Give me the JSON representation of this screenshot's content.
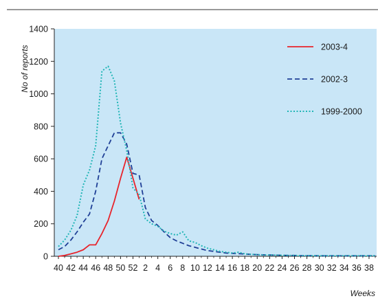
{
  "chart_data": {
    "type": "line",
    "title": "",
    "ylabel": "No of reports",
    "xlabel": "Weeks",
    "ylim": [
      0,
      1400
    ],
    "yticks": [
      0,
      200,
      400,
      600,
      800,
      1000,
      1200,
      1400
    ],
    "x_tick_labels": [
      "40",
      "42",
      "44",
      "46",
      "48",
      "50",
      "52",
      "2",
      "4",
      "6",
      "8",
      "10",
      "12",
      "14",
      "16",
      "18",
      "20",
      "22",
      "24",
      "26",
      "28",
      "30",
      "32",
      "34",
      "36",
      "38"
    ],
    "legend_position": "top-right",
    "plot_background": "#c9e6f7",
    "series": [
      {
        "name": "2003-4",
        "color": "#e8232a",
        "dash": "solid",
        "values": [
          [
            0,
            0
          ],
          [
            1,
            5
          ],
          [
            2,
            15
          ],
          [
            3,
            25
          ],
          [
            4,
            40
          ],
          [
            5,
            70
          ],
          [
            6,
            70
          ],
          [
            7,
            140
          ],
          [
            8,
            220
          ],
          [
            9,
            340
          ],
          [
            10,
            480
          ],
          [
            11,
            610
          ],
          [
            12,
            480
          ],
          [
            13,
            350
          ]
        ]
      },
      {
        "name": "2002-3",
        "color": "#1f3f96",
        "dash": "dashed",
        "values": [
          [
            0,
            40
          ],
          [
            1,
            60
          ],
          [
            2,
            100
          ],
          [
            3,
            150
          ],
          [
            4,
            210
          ],
          [
            5,
            260
          ],
          [
            6,
            400
          ],
          [
            7,
            600
          ],
          [
            8,
            680
          ],
          [
            9,
            760
          ],
          [
            10,
            760
          ],
          [
            11,
            690
          ],
          [
            12,
            510
          ],
          [
            13,
            500
          ],
          [
            14,
            300
          ],
          [
            15,
            220
          ],
          [
            16,
            190
          ],
          [
            17,
            150
          ],
          [
            18,
            115
          ],
          [
            19,
            95
          ],
          [
            20,
            80
          ],
          [
            21,
            65
          ],
          [
            22,
            55
          ],
          [
            23,
            45
          ],
          [
            24,
            35
          ],
          [
            25,
            30
          ],
          [
            26,
            25
          ],
          [
            27,
            20
          ],
          [
            28,
            18
          ],
          [
            29,
            16
          ],
          [
            30,
            14
          ],
          [
            31,
            12
          ],
          [
            32,
            10
          ],
          [
            33,
            9
          ],
          [
            34,
            8
          ],
          [
            35,
            7
          ],
          [
            36,
            6
          ],
          [
            37,
            5
          ],
          [
            38,
            5
          ],
          [
            39,
            4
          ],
          [
            40,
            4
          ],
          [
            41,
            4
          ],
          [
            42,
            3
          ],
          [
            43,
            3
          ],
          [
            44,
            3
          ],
          [
            45,
            3
          ],
          [
            46,
            3
          ],
          [
            47,
            3
          ],
          [
            48,
            3
          ],
          [
            49,
            3
          ],
          [
            50,
            3
          ],
          [
            51,
            3
          ]
        ]
      },
      {
        "name": "1999-2000",
        "color": "#1fb5b5",
        "dash": "dotted",
        "values": [
          [
            0,
            60
          ],
          [
            1,
            100
          ],
          [
            2,
            160
          ],
          [
            3,
            250
          ],
          [
            4,
            440
          ],
          [
            5,
            530
          ],
          [
            6,
            680
          ],
          [
            7,
            1140
          ],
          [
            8,
            1170
          ],
          [
            9,
            1080
          ],
          [
            10,
            820
          ],
          [
            11,
            650
          ],
          [
            12,
            420
          ],
          [
            13,
            380
          ],
          [
            14,
            230
          ],
          [
            15,
            200
          ],
          [
            16,
            185
          ],
          [
            17,
            155
          ],
          [
            18,
            140
          ],
          [
            19,
            130
          ],
          [
            20,
            150
          ],
          [
            21,
            95
          ],
          [
            22,
            85
          ],
          [
            23,
            65
          ],
          [
            24,
            50
          ],
          [
            25,
            40
          ],
          [
            26,
            30
          ],
          [
            27,
            25
          ],
          [
            28,
            20
          ],
          [
            29,
            25
          ],
          [
            30,
            15
          ],
          [
            31,
            12
          ],
          [
            32,
            10
          ],
          [
            33,
            8
          ],
          [
            34,
            8
          ],
          [
            35,
            7
          ],
          [
            36,
            6
          ],
          [
            37,
            5
          ],
          [
            38,
            5
          ],
          [
            39,
            4
          ],
          [
            40,
            4
          ],
          [
            41,
            4
          ],
          [
            42,
            3
          ],
          [
            43,
            3
          ],
          [
            44,
            3
          ],
          [
            45,
            3
          ],
          [
            46,
            3
          ],
          [
            47,
            3
          ],
          [
            48,
            3
          ],
          [
            49,
            3
          ],
          [
            50,
            3
          ],
          [
            51,
            3
          ]
        ]
      }
    ]
  }
}
